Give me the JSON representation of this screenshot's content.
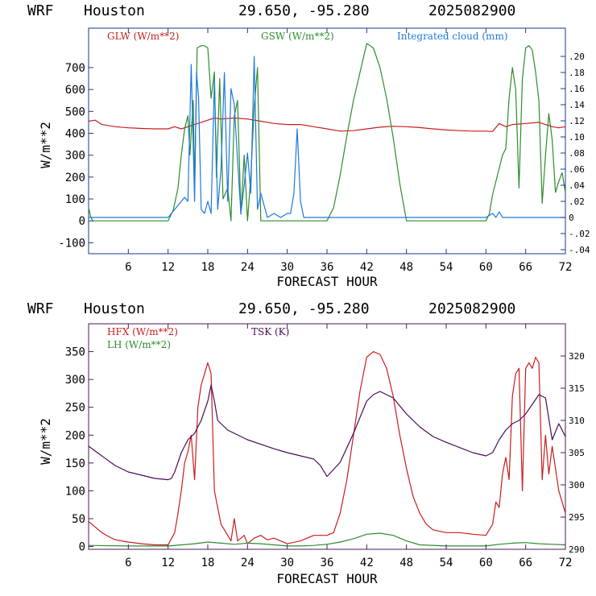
{
  "chart_data": [
    {
      "type": "line",
      "header": {
        "model": "WRF",
        "station": "Houston",
        "coords": "29.650, -95.280",
        "run": "2025082900"
      },
      "xlabel": "FORECAST HOUR",
      "ylabel": "W/m**2",
      "xlim": [
        0,
        72
      ],
      "ylim": [
        -150,
        880
      ],
      "xticks": [
        "6",
        "12",
        "18",
        "24",
        "30",
        "36",
        "42",
        "48",
        "54",
        "60",
        "66",
        "72"
      ],
      "yticks": [
        "-100",
        "0",
        "100",
        "200",
        "300",
        "400",
        "500",
        "600",
        "700"
      ],
      "y2lim": [
        -0.045,
        0.235
      ],
      "y2ticks": [
        ".20",
        ".18",
        ".16",
        ".14",
        ".12",
        ".10",
        ".08",
        ".06",
        ".04",
        ".02",
        "0",
        "-.02",
        "-.04"
      ],
      "legend": [
        {
          "label": "GLW (W/m**2)",
          "color": "#c81e1e"
        },
        {
          "label": "GSW (W/m**2)",
          "color": "#2e8b2e"
        },
        {
          "label": "Integrated cloud (mm)",
          "color": "#1e78dc"
        }
      ],
      "series": [
        {
          "name": "GLW (W/m**2)",
          "color": "#c81e1e",
          "axis": "left",
          "x": [
            0,
            1,
            2,
            4,
            6,
            8,
            10,
            12,
            13,
            14,
            16,
            17,
            18,
            19,
            20,
            22,
            24,
            26,
            28,
            30,
            32,
            34,
            36,
            38,
            40,
            42,
            44,
            46,
            48,
            50,
            52,
            54,
            56,
            58,
            60,
            61,
            62,
            63,
            64,
            66,
            68,
            69,
            70,
            71,
            72
          ],
          "y": [
            455,
            460,
            440,
            430,
            425,
            422,
            420,
            420,
            430,
            420,
            440,
            450,
            460,
            470,
            465,
            470,
            465,
            455,
            445,
            440,
            440,
            430,
            420,
            410,
            412,
            420,
            428,
            432,
            430,
            426,
            420,
            415,
            412,
            410,
            410,
            408,
            445,
            430,
            440,
            445,
            450,
            440,
            430,
            425,
            430
          ]
        },
        {
          "name": "GSW (W/m**2)",
          "color": "#2e8b2e",
          "axis": "left",
          "x": [
            0,
            0.3,
            0.6,
            12,
            12.8,
            13.5,
            14,
            14.5,
            15,
            15.3,
            15.8,
            16,
            16.4,
            17,
            17.5,
            18,
            18.5,
            19,
            19.3,
            19.8,
            20.3,
            21,
            21.5,
            22,
            22.5,
            23,
            23.5,
            24,
            24.5,
            25,
            25.5,
            26,
            27,
            28,
            29,
            30,
            31,
            32,
            33,
            34,
            35,
            35.5,
            36,
            37,
            38,
            39,
            40,
            41,
            42,
            43,
            44,
            45,
            46,
            47,
            48,
            48.5,
            49,
            60,
            60.5,
            61,
            62,
            62.5,
            63,
            63.5,
            64,
            64.5,
            65,
            65.5,
            66,
            66.5,
            67,
            67.5,
            68,
            68.5,
            69,
            69.5,
            70,
            70.5,
            71,
            71.5,
            72
          ],
          "y": [
            60,
            20,
            0,
            0,
            50,
            150,
            300,
            420,
            480,
            300,
            550,
            150,
            790,
            800,
            800,
            790,
            560,
            680,
            200,
            650,
            100,
            150,
            0,
            480,
            550,
            30,
            300,
            0,
            200,
            520,
            700,
            0,
            0,
            0,
            0,
            0,
            0,
            0,
            0,
            0,
            0,
            0,
            0,
            60,
            210,
            390,
            550,
            680,
            810,
            790,
            700,
            560,
            380,
            170,
            0,
            0,
            0,
            0,
            30,
            120,
            240,
            300,
            330,
            560,
            700,
            600,
            150,
            650,
            790,
            800,
            780,
            680,
            550,
            80,
            300,
            490,
            370,
            130,
            180,
            220,
            130
          ]
        },
        {
          "name": "Integrated cloud (mm)",
          "color": "#1e78dc",
          "axis": "right",
          "x": [
            0,
            12,
            13,
            14,
            14.5,
            15,
            15.5,
            16,
            16.3,
            16.6,
            17,
            17.5,
            18,
            18.5,
            19,
            19.5,
            20,
            20.5,
            21,
            21.5,
            22,
            22.5,
            23,
            23.5,
            24,
            24.5,
            25,
            25.5,
            26,
            27,
            28,
            29,
            30,
            30.5,
            31,
            31.5,
            32,
            32.5,
            33,
            34,
            50,
            60,
            61,
            61.5,
            62,
            62.5,
            72
          ],
          "y": [
            0,
            0,
            0.01,
            0.02,
            0.025,
            0.02,
            0.19,
            0.02,
            0.18,
            0.15,
            0.01,
            0.005,
            0.02,
            0.005,
            0.17,
            0.01,
            0.06,
            0.18,
            0.02,
            0.16,
            0.14,
            0.07,
            0.005,
            0.04,
            0.08,
            0.03,
            0.2,
            0.01,
            0.03,
            0,
            0.005,
            0,
            0.005,
            0.005,
            0.03,
            0.11,
            0.02,
            0,
            0,
            0,
            0,
            0,
            0.005,
            0,
            0.007,
            0,
            0
          ]
        }
      ]
    },
    {
      "type": "line",
      "header": {
        "model": "WRF",
        "station": "Houston",
        "coords": "29.650, -95.280",
        "run": "2025082900"
      },
      "xlabel": "FORECAST HOUR",
      "ylabel": "W/m**2",
      "xlim": [
        0,
        72
      ],
      "ylim": [
        -5,
        400
      ],
      "xticks": [
        "6",
        "12",
        "18",
        "24",
        "30",
        "36",
        "42",
        "48",
        "54",
        "60",
        "66",
        "72"
      ],
      "yticks": [
        "0",
        "50",
        "100",
        "150",
        "200",
        "250",
        "300",
        "350"
      ],
      "y2lim": [
        290,
        325
      ],
      "y2ticks": [
        "320",
        "315",
        "310",
        "305",
        "300",
        "295",
        "290"
      ],
      "legend": [
        {
          "label": "HFX (W/m**2)",
          "color": "#c81e1e"
        },
        {
          "label": "LH  (W/m**2)",
          "color": "#2e8b2e"
        },
        {
          "label": "TSK (K)",
          "color": "#4a0a5a"
        }
      ],
      "series": [
        {
          "name": "HFX (W/m**2)",
          "color": "#c81e1e",
          "axis": "left",
          "x": [
            0,
            1,
            2,
            3,
            4,
            6,
            8,
            10,
            12,
            13,
            13.5,
            14,
            14.5,
            15,
            15.5,
            16,
            16.5,
            17,
            17.5,
            18,
            18.5,
            19,
            19.5,
            20,
            20.5,
            21,
            21.5,
            22,
            22.5,
            23,
            23.5,
            24,
            24.5,
            25,
            26,
            27,
            28,
            30,
            32,
            34,
            36,
            37,
            38,
            39,
            40,
            41,
            42,
            43,
            44,
            45,
            46,
            47,
            48,
            49,
            50,
            51,
            52,
            54,
            56,
            58,
            60,
            61,
            61.5,
            62,
            62.5,
            63,
            63.5,
            64,
            64.5,
            65,
            65.5,
            66,
            66.5,
            67,
            67.5,
            68,
            68.5,
            69,
            69.5,
            70,
            70.5,
            71,
            71.5,
            72
          ],
          "y": [
            45,
            35,
            25,
            18,
            12,
            8,
            5,
            3,
            3,
            25,
            60,
            100,
            150,
            170,
            200,
            120,
            250,
            290,
            310,
            330,
            310,
            100,
            70,
            40,
            30,
            20,
            10,
            50,
            10,
            15,
            20,
            5,
            10,
            15,
            20,
            12,
            15,
            5,
            10,
            20,
            20,
            25,
            60,
            120,
            200,
            280,
            340,
            350,
            345,
            320,
            270,
            200,
            140,
            90,
            60,
            40,
            30,
            25,
            25,
            22,
            20,
            40,
            80,
            70,
            130,
            160,
            120,
            270,
            310,
            320,
            100,
            320,
            330,
            320,
            340,
            330,
            120,
            200,
            130,
            180,
            140,
            100,
            80,
            60
          ]
        },
        {
          "name": "LH  (W/m**2)",
          "color": "#2e8b2e",
          "axis": "left",
          "x": [
            0,
            6,
            10,
            12,
            14,
            16,
            18,
            20,
            22,
            24,
            26,
            28,
            30,
            32,
            34,
            36,
            38,
            40,
            42,
            44,
            46,
            48,
            50,
            54,
            58,
            60,
            62,
            64,
            66,
            68,
            70,
            72
          ],
          "y": [
            2,
            1,
            1,
            1,
            3,
            5,
            8,
            6,
            4,
            6,
            5,
            3,
            1,
            1,
            2,
            4,
            8,
            14,
            22,
            24,
            20,
            10,
            3,
            1,
            1,
            1,
            4,
            6,
            7,
            5,
            4,
            3
          ]
        },
        {
          "name": "TSK (K)",
          "color": "#4a0a5a",
          "axis": "right",
          "x": [
            0,
            2,
            4,
            6,
            8,
            10,
            12,
            12.5,
            13,
            14,
            15,
            16,
            17,
            18,
            18.5,
            19,
            19.5,
            20,
            20.5,
            21,
            22,
            24,
            26,
            28,
            30,
            32,
            34,
            35,
            36,
            38,
            40,
            42,
            43,
            44,
            46,
            48,
            50,
            52,
            54,
            56,
            58,
            60,
            61,
            62,
            63,
            64,
            65,
            66,
            67,
            68,
            69,
            70,
            71,
            72
          ],
          "y": [
            306,
            304.5,
            303,
            302,
            301.5,
            301,
            300.8,
            301,
            302,
            305,
            307,
            308,
            310,
            313,
            315.5,
            313,
            310,
            309.5,
            309,
            308.5,
            308,
            307,
            306.3,
            305.6,
            305,
            304.5,
            304,
            303,
            301.3,
            303.5,
            308,
            313,
            314,
            314.5,
            313.5,
            311,
            309,
            307.5,
            306.6,
            305.8,
            305,
            304.5,
            305,
            307,
            308.5,
            309.5,
            310,
            311,
            312.5,
            314,
            313.5,
            307,
            309.5,
            307.5
          ]
        }
      ]
    }
  ]
}
